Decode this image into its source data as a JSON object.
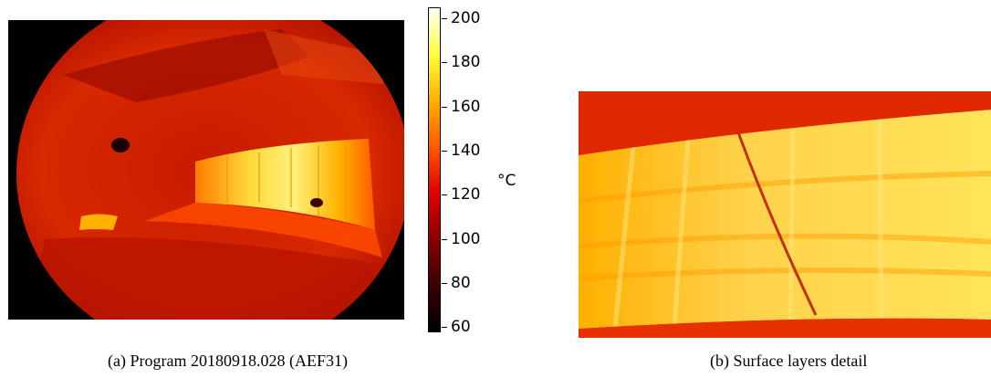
{
  "colorbar": {
    "ticks": [
      "200",
      "180",
      "160",
      "140",
      "120",
      "100",
      "80",
      "60"
    ],
    "unit": "°C",
    "colors": [
      "#fffff2",
      "#ffff40",
      "#ffb000",
      "#ff5a00",
      "#e00000",
      "#8a0000",
      "#3a0000",
      "#000000"
    ]
  },
  "captions": {
    "a": "(a)  Program 20180918.028 (AEF31)",
    "b": "(b)  Surface layers detail"
  },
  "images": {
    "a": "infrared-camera-view",
    "b": "surface-layers-detail"
  }
}
